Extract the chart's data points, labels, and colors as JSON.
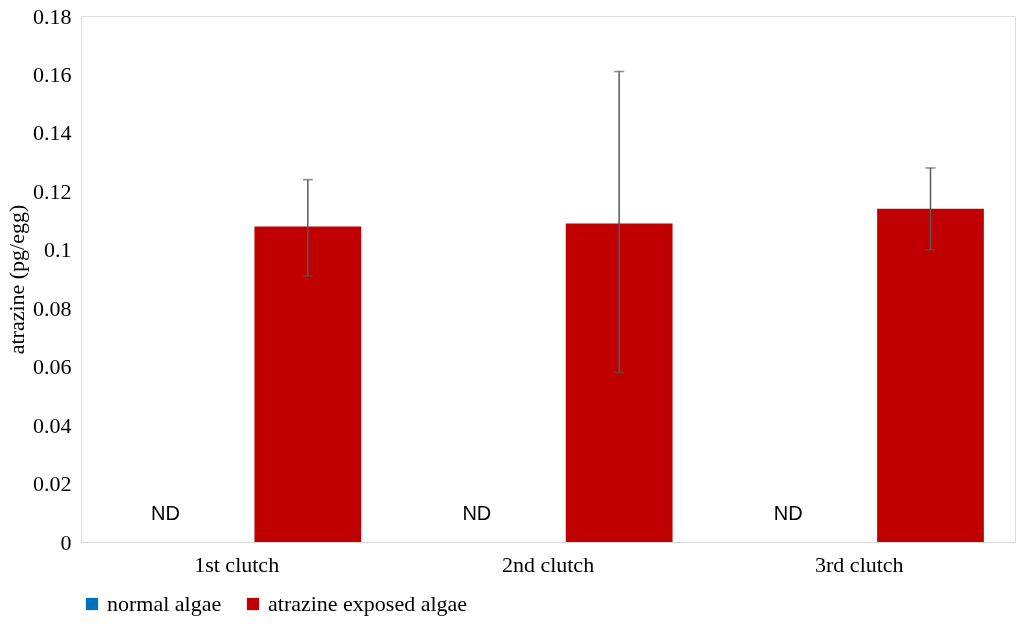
{
  "chart_data": {
    "type": "bar",
    "ylabel": "atrazine (pg/egg)",
    "categories": [
      "1st clutch",
      "2nd clutch",
      "3rd clutch"
    ],
    "series": [
      {
        "name": "normal algae",
        "color": "#0070c0",
        "values": [
          null,
          null,
          null
        ]
      },
      {
        "name": "atrazine exposed algae",
        "color": "#c00000",
        "values": [
          0.108,
          0.109,
          0.114
        ],
        "errors": [
          [
            0.091,
            0.124
          ],
          [
            0.058,
            0.161
          ],
          [
            0.1,
            0.128
          ]
        ]
      }
    ],
    "annotations": [
      "ND",
      "ND",
      "ND"
    ],
    "ylim": [
      0,
      0.18
    ],
    "yticks": [
      0,
      0.02,
      0.04,
      0.06,
      0.08,
      0.1,
      0.12,
      0.14,
      0.16,
      0.18
    ],
    "grid": false,
    "legend": "bottom"
  }
}
